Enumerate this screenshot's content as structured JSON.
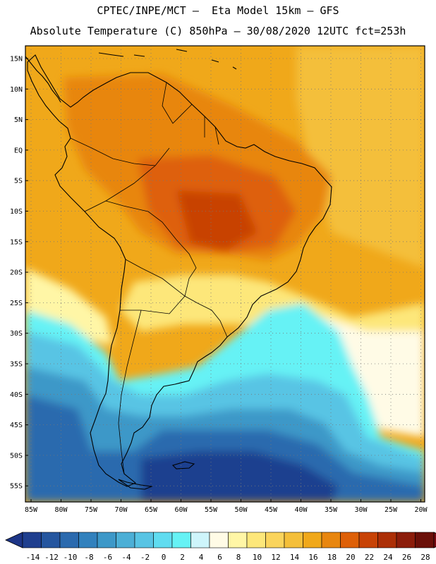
{
  "header": {
    "line1": "CPTEC/INPE/MCT –  Eta Model 15km – GFS",
    "line2": "Absolute Temperature (C) 850hPa – 30/08/2020 12UTC fct=253h"
  },
  "map": {
    "lat_labels": [
      "15N",
      "10N",
      "5N",
      "EQ",
      "5S",
      "10S",
      "15S",
      "20S",
      "25S",
      "30S",
      "35S",
      "40S",
      "45S",
      "50S",
      "55S"
    ],
    "lon_labels": [
      "85W",
      "80W",
      "75W",
      "70W",
      "65W",
      "60W",
      "55W",
      "50W",
      "45W",
      "40W",
      "35W",
      "30W",
      "25W",
      "20W"
    ],
    "grid": "dotted",
    "land_color": "#000000"
  },
  "colorbar": {
    "levels": [
      "-14",
      "-12",
      "-10",
      "-8",
      "-6",
      "-4",
      "-2",
      "0",
      "2",
      "4",
      "6",
      "8",
      "10",
      "12",
      "14",
      "16",
      "18",
      "20",
      "22",
      "24",
      "26",
      "28"
    ],
    "colors": [
      "#1f3f8f",
      "#25569f",
      "#2b6aae",
      "#3281bd",
      "#3d98c8",
      "#4cafd6",
      "#58c4e4",
      "#60dcf0",
      "#66f2f5",
      "#cef5fb",
      "#fffbe6",
      "#fff6a6",
      "#fde77a",
      "#fad45c",
      "#f4bf3a",
      "#f0a81a",
      "#e8860f",
      "#de6008",
      "#c84306",
      "#ac2f07",
      "#8c1d0b",
      "#6b1009"
    ],
    "under_color": "#1d3587",
    "over_color": "#7a0a10"
  }
}
